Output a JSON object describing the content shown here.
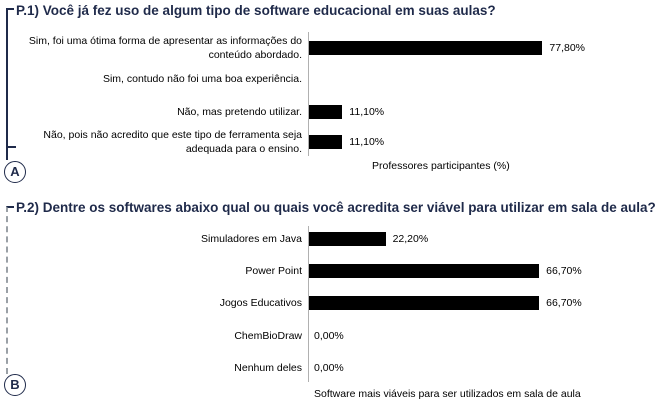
{
  "panels": [
    {
      "badge": "A",
      "title": "P.1) Você já fez uso de algum tipo de software educacional em suas aulas?",
      "axis_title": "Professores participantes (%)"
    },
    {
      "badge": "B",
      "title": "P.2) Dentre os softwares abaixo qual ou quais você acredita ser viável para utilizar em sala de aula?",
      "axis_title": "Software mais viáveis para ser utilizados em sala de aula"
    }
  ],
  "colors": {
    "bar": "#000000",
    "title": "#1f2a4a",
    "badge_border": "#1f2a4a"
  },
  "chart_data": [
    {
      "type": "bar",
      "orientation": "horizontal",
      "title": "P.1) Você já fez uso de algum tipo de software educacional em suas aulas?",
      "xlabel": "Professores participantes (%)",
      "categories": [
        "Sim, foi uma ótima forma de apresentar as informações do conteúdo abordado.",
        "Sim, contudo não foi uma boa experiência.",
        "Não, mas pretendo utilizar.",
        "Não, pois não acredito que este tipo de ferramenta seja adequada para o ensino."
      ],
      "values": [
        77.8,
        0,
        11.1,
        11.1
      ],
      "value_labels": [
        "77,80%",
        "",
        "11,10%",
        "11,10%"
      ],
      "xlim": [
        0,
        100
      ],
      "grid": false
    },
    {
      "type": "bar",
      "orientation": "horizontal",
      "title": "P.2) Dentre os softwares abaixo qual ou quais você acredita ser viável para utilizar em sala de aula?",
      "xlabel": "Software mais viáveis para ser utilizados em sala de aula",
      "categories": [
        "Simuladores em Java",
        "Power Point",
        "Jogos Educativos",
        "ChemBioDraw",
        "Nenhum deles"
      ],
      "values": [
        22.2,
        66.7,
        66.7,
        0,
        0
      ],
      "value_labels": [
        "22,20%",
        "66,70%",
        "66,70%",
        "0,00%",
        "0,00%"
      ],
      "xlim": [
        0,
        100
      ],
      "grid": false
    }
  ]
}
